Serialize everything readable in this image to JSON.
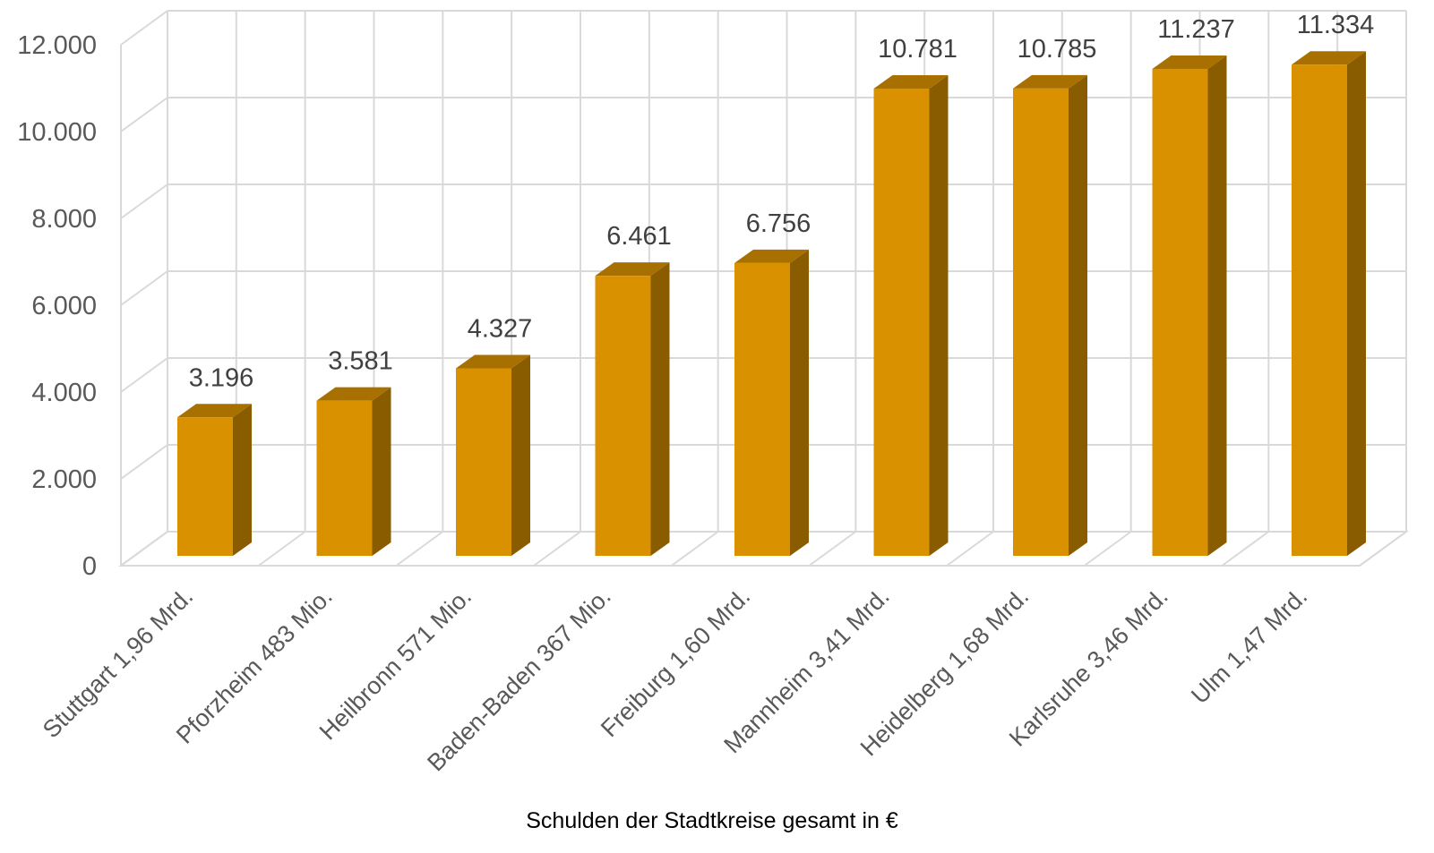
{
  "chart_data": {
    "type": "bar",
    "style": "3d-column",
    "categories": [
      "Stuttgart 1,96 Mrd.",
      "Pforzheim 483 Mio.",
      "Heilbronn 571 Mio.",
      "Baden-Baden 367 Mio.",
      "Freiburg 1,60 Mrd.",
      "Mannheim 3,41 Mrd.",
      "Heidelberg 1,68 Mrd.",
      "Karlsruhe 3,46 Mrd.",
      "Ulm 1,47 Mrd."
    ],
    "values": [
      3196,
      3581,
      4327,
      6461,
      6756,
      10781,
      10785,
      11237,
      11334
    ],
    "value_labels": [
      "3.196",
      "3.581",
      "4.327",
      "6.461",
      "6.756",
      "10.781",
      "10.785",
      "11.237",
      "11.334"
    ],
    "title": "",
    "xlabel": "Schulden der Stadtkreise gesamt in €",
    "ylabel": "",
    "ylim": [
      0,
      12000
    ],
    "yticks": [
      0,
      2000,
      4000,
      6000,
      8000,
      10000,
      12000
    ],
    "ytick_labels": [
      "0",
      "2.000",
      "4.000",
      "6.000",
      "8.000",
      "10.000",
      "12.000"
    ],
    "grid": true,
    "legend": "none",
    "colors": {
      "bar_front": "#D99100",
      "bar_side": "#8A5C00",
      "bar_top": "#A87000",
      "grid": "#D9D9D9"
    }
  }
}
